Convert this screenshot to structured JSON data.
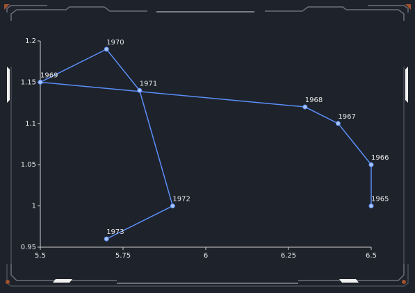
{
  "chart_data": {
    "type": "line",
    "x": [
      6.5,
      6.5,
      6.4,
      6.3,
      5.5,
      5.7,
      5.8,
      5.9,
      5.7
    ],
    "values": [
      1.0,
      1.05,
      1.1,
      1.12,
      1.15,
      1.19,
      1.14,
      1.0,
      0.96
    ],
    "point_labels": [
      "1965",
      "1966",
      "1967",
      "1968",
      "1969",
      "1970",
      "1971",
      "1972",
      "1973"
    ],
    "color": "#5b8ff9",
    "xlim": [
      5.5,
      6.5
    ],
    "xticks": [
      5.5,
      5.75,
      6,
      6.25,
      6.5
    ],
    "ylim": [
      0.95,
      1.2
    ],
    "yticks": [
      0.95,
      1,
      1.05,
      1.1,
      1.15,
      1.2
    ]
  }
}
